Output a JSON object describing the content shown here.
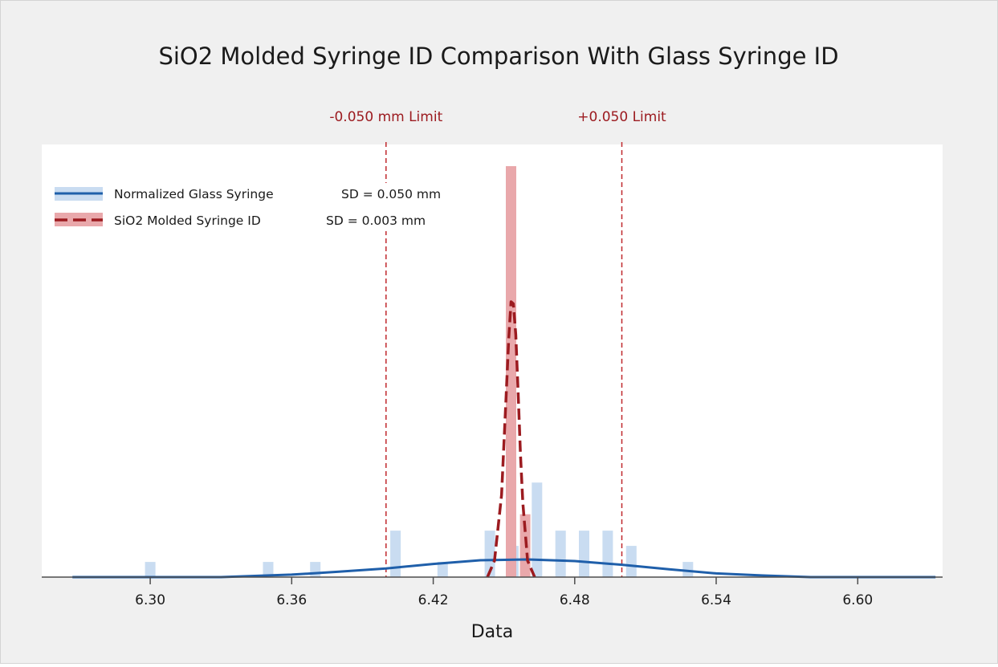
{
  "chart_data": {
    "type": "histogram",
    "title": "SiO2 Molded Syringe ID Comparison With Glass Syringe ID",
    "xlabel": "Data",
    "ylabel": "",
    "xlim": [
      6.254,
      6.636
    ],
    "ylim": [
      0,
      1
    ],
    "y_axis_shown": false,
    "grid": false,
    "legend_position": "top-left",
    "x_ticks": [
      6.3,
      6.36,
      6.42,
      6.48,
      6.54,
      6.6
    ],
    "x_tick_labels": [
      "6.30",
      "6.36",
      "6.42",
      "6.48",
      "6.54",
      "6.60"
    ],
    "reference_lines": [
      {
        "x": 6.4,
        "label": "-0.050 mm Limit",
        "color": "#c0282d",
        "style": "dashed"
      },
      {
        "x": 6.5,
        "label": "+0.050 Limit",
        "color": "#c0282d",
        "style": "dashed"
      }
    ],
    "series": [
      {
        "name": "Normalized Glass Syringe",
        "legend_stat": "SD = 0.050 mm",
        "histogram_color": "#c9dcf1",
        "curve_color": "#1f5faa",
        "curve_style": "solid",
        "sd": 0.05,
        "bins": [
          {
            "x": 6.3,
            "height": 0.037
          },
          {
            "x": 6.35,
            "height": 0.037
          },
          {
            "x": 6.37,
            "height": 0.037
          },
          {
            "x": 6.404,
            "height": 0.113
          },
          {
            "x": 6.424,
            "height": 0.037
          },
          {
            "x": 6.444,
            "height": 0.113
          },
          {
            "x": 6.454,
            "height": 0.076
          },
          {
            "x": 6.464,
            "height": 0.23
          },
          {
            "x": 6.474,
            "height": 0.113
          },
          {
            "x": 6.484,
            "height": 0.113
          },
          {
            "x": 6.494,
            "height": 0.113
          },
          {
            "x": 6.504,
            "height": 0.076
          },
          {
            "x": 6.528,
            "height": 0.037
          }
        ],
        "fit_curve": {
          "x": [
            6.267,
            6.33,
            6.36,
            6.38,
            6.4,
            6.42,
            6.44,
            6.46,
            6.48,
            6.5,
            6.52,
            6.54,
            6.56,
            6.58,
            6.6,
            6.633
          ],
          "y": [
            0.0,
            0.0,
            0.006,
            0.013,
            0.021,
            0.032,
            0.041,
            0.043,
            0.039,
            0.03,
            0.019,
            0.009,
            0.004,
            0.0,
            0.0,
            0.0
          ]
        }
      },
      {
        "name": "SiO2 Molded Syringe ID",
        "legend_stat": "SD = 0.003 mm",
        "histogram_color": "#e9a8ab",
        "curve_color": "#9c1b20",
        "curve_style": "dashed",
        "sd": 0.003,
        "bins": [
          {
            "x": 6.453,
            "height": 1.0
          },
          {
            "x": 6.459,
            "height": 0.153
          }
        ],
        "fit_curve": {
          "x": [
            6.443,
            6.446,
            6.449,
            6.451,
            6.452,
            6.453,
            6.454,
            6.455,
            6.456,
            6.457,
            6.458,
            6.46,
            6.463
          ],
          "y": [
            0.0,
            0.04,
            0.2,
            0.45,
            0.58,
            0.67,
            0.665,
            0.59,
            0.45,
            0.3,
            0.18,
            0.04,
            0.0
          ]
        }
      }
    ]
  },
  "colors": {
    "figure_background": "#f0f0f0",
    "plot_background": "#ffffff",
    "axis": "#4d4d4d",
    "limit_line": "#c0282d",
    "limit_text": "#9c1b20"
  }
}
